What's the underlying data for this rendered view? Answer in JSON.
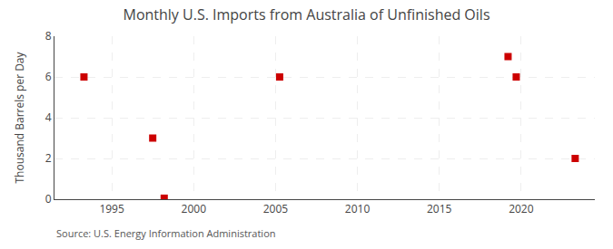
{
  "chart_data": {
    "type": "scatter",
    "title": "Monthly U.S. Imports from Australia of Unfinished Oils",
    "ylabel": "Thousand Barrels per Day",
    "annotations": [
      "Source: U.S. Energy Information Administration"
    ],
    "x": [
      1993.3,
      1997.5,
      1998.2,
      2005.25,
      2019.2,
      2019.7,
      2023.3
    ],
    "values": [
      6.0,
      3.0,
      0.05,
      6.0,
      7.0,
      6.0,
      2.0
    ],
    "color": "#cc0000",
    "marker": "square",
    "xlim": [
      1991.5,
      2024.5
    ],
    "ylim": [
      0,
      8
    ],
    "xticks": [
      1995,
      2000,
      2005,
      2010,
      2015,
      2020
    ],
    "yticks": [
      0,
      2,
      4,
      6,
      8
    ],
    "grid": true
  }
}
